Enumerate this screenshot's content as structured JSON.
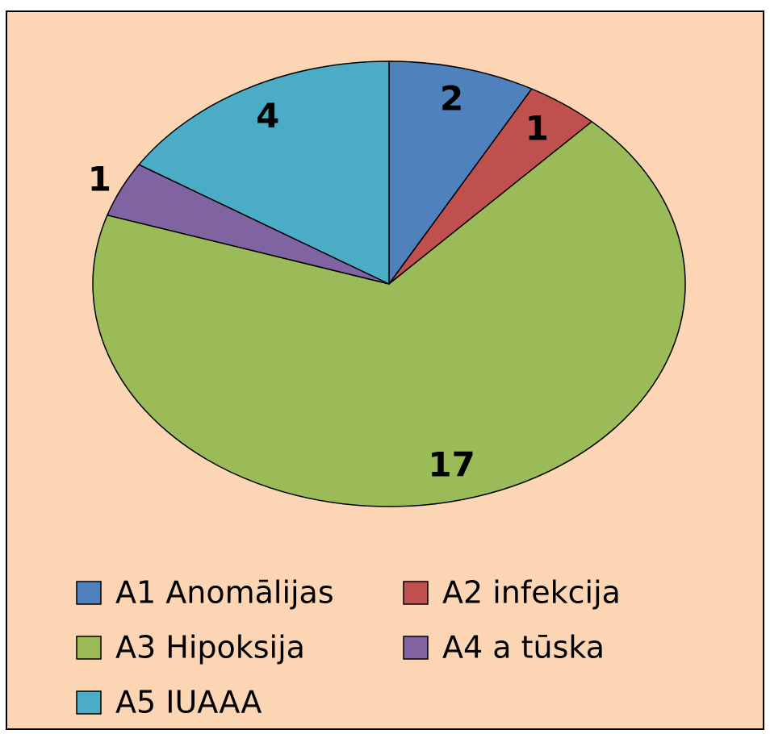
{
  "chart_data": {
    "type": "pie",
    "categories": [
      "A1 Anomālijas",
      "A2 infekcija",
      "A3 Hipoksija",
      "A4 a tūska",
      "A5 IUAAA"
    ],
    "values": [
      2,
      1,
      17,
      1,
      4
    ],
    "colors": [
      "#4F81BD",
      "#C0504D",
      "#9BBB59",
      "#8064A2",
      "#4BACC6"
    ],
    "legend": "bottom"
  }
}
